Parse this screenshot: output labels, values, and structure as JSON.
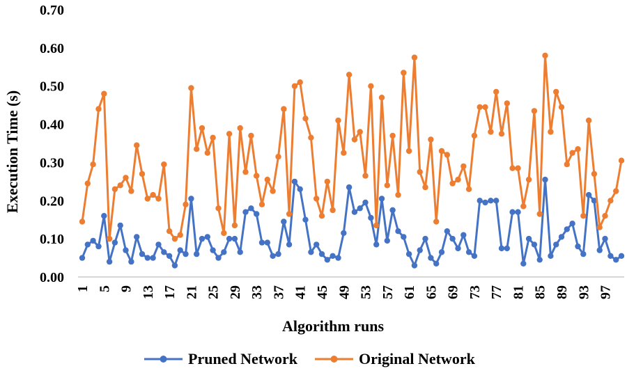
{
  "chart_data": {
    "type": "line",
    "xlabel": "Algorithm runs",
    "ylabel": "Execution Time (s)",
    "ylim": [
      0,
      0.7
    ],
    "y_ticks": [
      "0.00",
      "0.10",
      "0.20",
      "0.30",
      "0.40",
      "0.50",
      "0.60",
      "0.70"
    ],
    "x_tick_labels": [
      "1",
      "5",
      "9",
      "13",
      "17",
      "21",
      "25",
      "29",
      "33",
      "37",
      "41",
      "45",
      "49",
      "53",
      "57",
      "61",
      "65",
      "69",
      "73",
      "77",
      "81",
      "85",
      "89",
      "93",
      "97"
    ],
    "x": [
      1,
      2,
      3,
      4,
      5,
      6,
      7,
      8,
      9,
      10,
      11,
      12,
      13,
      14,
      15,
      16,
      17,
      18,
      19,
      20,
      21,
      22,
      23,
      24,
      25,
      26,
      27,
      28,
      29,
      30,
      31,
      32,
      33,
      34,
      35,
      36,
      37,
      38,
      39,
      40,
      41,
      42,
      43,
      44,
      45,
      46,
      47,
      48,
      49,
      50,
      51,
      52,
      53,
      54,
      55,
      56,
      57,
      58,
      59,
      60,
      61,
      62,
      63,
      64,
      65,
      66,
      67,
      68,
      69,
      70,
      71,
      72,
      73,
      74,
      75,
      76,
      77,
      78,
      79,
      80,
      81,
      82,
      83,
      84,
      85,
      86,
      87,
      88,
      89,
      90,
      91,
      92,
      93,
      94,
      95,
      96,
      97,
      98,
      99,
      100
    ],
    "grid": false,
    "legend_position": "bottom",
    "series": [
      {
        "name": "Pruned Network",
        "color": "#4472c4",
        "values": [
          0.05,
          0.085,
          0.095,
          0.08,
          0.16,
          0.04,
          0.09,
          0.135,
          0.07,
          0.04,
          0.105,
          0.06,
          0.05,
          0.05,
          0.085,
          0.065,
          0.055,
          0.03,
          0.07,
          0.06,
          0.205,
          0.06,
          0.1,
          0.105,
          0.07,
          0.05,
          0.065,
          0.1,
          0.1,
          0.065,
          0.17,
          0.18,
          0.165,
          0.09,
          0.09,
          0.055,
          0.06,
          0.145,
          0.085,
          0.25,
          0.23,
          0.15,
          0.065,
          0.085,
          0.06,
          0.045,
          0.055,
          0.05,
          0.115,
          0.235,
          0.17,
          0.18,
          0.195,
          0.155,
          0.085,
          0.205,
          0.095,
          0.175,
          0.12,
          0.105,
          0.06,
          0.03,
          0.07,
          0.1,
          0.05,
          0.035,
          0.065,
          0.12,
          0.1,
          0.075,
          0.11,
          0.065,
          0.055,
          0.2,
          0.195,
          0.2,
          0.2,
          0.075,
          0.075,
          0.17,
          0.17,
          0.035,
          0.1,
          0.085,
          0.045,
          0.255,
          0.055,
          0.085,
          0.105,
          0.125,
          0.14,
          0.08,
          0.06,
          0.215,
          0.2,
          0.07,
          0.1,
          0.055,
          0.045,
          0.055
        ]
      },
      {
        "name": "Original Network",
        "color": "#ed7d31",
        "values": [
          0.145,
          0.245,
          0.295,
          0.44,
          0.48,
          0.1,
          0.23,
          0.24,
          0.26,
          0.225,
          0.345,
          0.27,
          0.205,
          0.215,
          0.205,
          0.295,
          0.12,
          0.1,
          0.11,
          0.19,
          0.495,
          0.335,
          0.39,
          0.325,
          0.365,
          0.18,
          0.115,
          0.375,
          0.135,
          0.39,
          0.275,
          0.37,
          0.265,
          0.19,
          0.255,
          0.225,
          0.315,
          0.44,
          0.165,
          0.5,
          0.51,
          0.415,
          0.365,
          0.205,
          0.16,
          0.25,
          0.175,
          0.41,
          0.325,
          0.53,
          0.36,
          0.38,
          0.265,
          0.5,
          0.135,
          0.47,
          0.24,
          0.37,
          0.215,
          0.535,
          0.33,
          0.575,
          0.275,
          0.235,
          0.36,
          0.145,
          0.33,
          0.32,
          0.245,
          0.255,
          0.29,
          0.23,
          0.37,
          0.445,
          0.445,
          0.38,
          0.485,
          0.375,
          0.455,
          0.285,
          0.285,
          0.185,
          0.255,
          0.435,
          0.165,
          0.58,
          0.38,
          0.485,
          0.445,
          0.295,
          0.325,
          0.335,
          0.16,
          0.41,
          0.27,
          0.13,
          0.16,
          0.2,
          0.225,
          0.305
        ]
      }
    ]
  }
}
